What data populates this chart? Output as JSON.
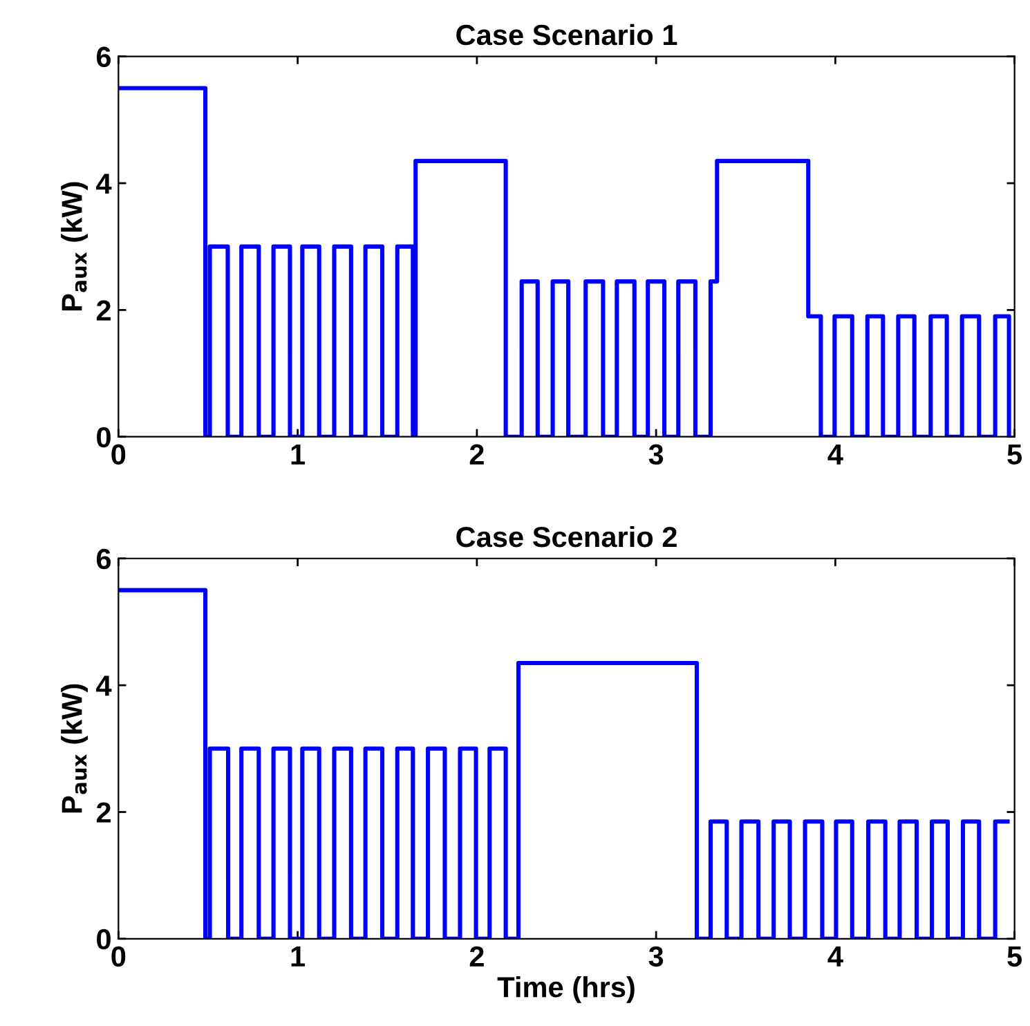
{
  "chart_data": [
    {
      "type": "step",
      "title": "Case Scenario 1",
      "ylabel": "P$_{aux}$ (kW)",
      "xlim": [
        0,
        5
      ],
      "ylim": [
        0,
        6
      ],
      "xticks": [
        0,
        1,
        2,
        3,
        4,
        5
      ],
      "yticks": [
        0,
        2,
        4,
        6
      ],
      "grid": false,
      "legend": false,
      "series": [
        {
          "color": "#0000ff",
          "x": [
            0,
            0.485,
            0.51,
            0.61,
            0.686,
            0.783,
            0.865,
            0.957,
            1.026,
            1.12,
            1.204,
            1.298,
            1.378,
            1.472,
            1.556,
            1.643,
            1.658,
            2.161,
            2.25,
            2.339,
            2.423,
            2.51,
            2.607,
            2.704,
            2.781,
            2.879,
            2.954,
            3.046,
            3.124,
            3.219,
            3.304,
            3.34,
            3.849,
            3.919,
            3.996,
            4.094,
            4.179,
            4.266,
            4.351,
            4.441,
            4.532,
            4.622,
            4.707,
            4.802,
            4.892,
            4.969
          ],
          "values": [
            5.5,
            0,
            3,
            0,
            3,
            0,
            3,
            0,
            3,
            0,
            3,
            0,
            3,
            0,
            3,
            0,
            4.35,
            0,
            2.45,
            0,
            2.45,
            0,
            2.45,
            0,
            2.45,
            0,
            2.45,
            0,
            2.45,
            0,
            2.45,
            4.35,
            1.9,
            0,
            1.9,
            0,
            1.9,
            0,
            1.9,
            0,
            1.9,
            0,
            1.9,
            0,
            1.9,
            0
          ]
        }
      ]
    },
    {
      "type": "step",
      "title": "Case Scenario 2",
      "xlabel": "Time (hrs)",
      "ylabel": "P$_{aux}$ (kW)",
      "xlim": [
        0,
        5
      ],
      "ylim": [
        0,
        6
      ],
      "xticks": [
        0,
        1,
        2,
        3,
        4,
        5
      ],
      "yticks": [
        0,
        2,
        4,
        6
      ],
      "grid": false,
      "legend": false,
      "series": [
        {
          "color": "#0000ff",
          "x": [
            0,
            0.485,
            0.51,
            0.612,
            0.686,
            0.783,
            0.865,
            0.957,
            1.026,
            1.12,
            1.204,
            1.298,
            1.378,
            1.472,
            1.556,
            1.643,
            1.727,
            1.821,
            1.906,
            1.995,
            2.071,
            2.161,
            2.232,
            3.227,
            3.304,
            3.394,
            3.476,
            3.571,
            3.656,
            3.746,
            3.831,
            3.927,
            4.004,
            4.094,
            4.184,
            4.279,
            4.359,
            4.454,
            4.539,
            4.627,
            4.712,
            4.802,
            4.892,
            4.961
          ],
          "values": [
            5.5,
            0,
            3,
            0,
            3,
            0,
            3,
            0,
            3,
            0,
            3,
            0,
            3,
            0,
            3,
            0,
            3,
            0,
            3,
            0,
            3,
            0,
            4.35,
            0,
            1.85,
            0,
            1.85,
            0,
            1.85,
            0,
            1.85,
            0,
            1.85,
            0,
            1.85,
            0,
            1.85,
            0,
            1.85,
            0,
            1.85,
            0,
            1.85,
            1.85
          ]
        }
      ]
    }
  ]
}
